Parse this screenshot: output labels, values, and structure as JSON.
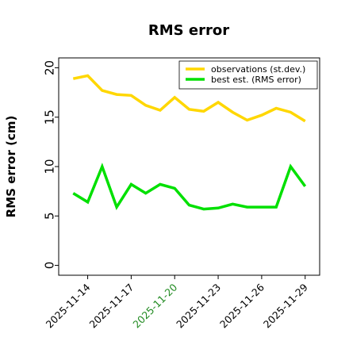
{
  "chart_data": {
    "type": "line",
    "title": "RMS error",
    "xlabel": "",
    "ylabel": "RMS error (cm)",
    "ylim": [
      -1,
      21
    ],
    "yticks": [
      0,
      5,
      10,
      15,
      20
    ],
    "xlim": [
      "2025-11-12",
      "2025-11-30"
    ],
    "x": [
      "2025-11-13",
      "2025-11-14",
      "2025-11-15",
      "2025-11-16",
      "2025-11-17",
      "2025-11-18",
      "2025-11-19",
      "2025-11-20",
      "2025-11-21",
      "2025-11-22",
      "2025-11-23",
      "2025-11-24",
      "2025-11-25",
      "2025-11-26",
      "2025-11-27",
      "2025-11-28",
      "2025-11-29"
    ],
    "xticks": [
      {
        "date": "2025-11-14",
        "label": "2025-11-14",
        "color": "#000000"
      },
      {
        "date": "2025-11-17",
        "label": "2025-11-17",
        "color": "#000000"
      },
      {
        "date": "2025-11-20",
        "label": "2025-11-20",
        "color": "#228b22"
      },
      {
        "date": "2025-11-23",
        "label": "2025-11-23",
        "color": "#000000"
      },
      {
        "date": "2025-11-26",
        "label": "2025-11-26",
        "color": "#000000"
      },
      {
        "date": "2025-11-29",
        "label": "2025-11-29",
        "color": "#000000"
      }
    ],
    "series": [
      {
        "name": "observations (st.dev.)",
        "color": "#ffd700",
        "values": [
          18.9,
          19.2,
          17.7,
          17.3,
          17.2,
          16.2,
          15.7,
          17.0,
          15.8,
          15.6,
          16.5,
          15.5,
          14.7,
          15.2,
          15.9,
          15.5,
          14.6
        ]
      },
      {
        "name": "best est. (RMS error)",
        "color": "#00e000",
        "values": [
          7.3,
          6.4,
          10.0,
          5.9,
          8.2,
          7.3,
          8.2,
          7.8,
          6.1,
          5.7,
          5.8,
          6.2,
          5.9,
          5.9,
          5.9,
          10.0,
          8.0
        ]
      }
    ],
    "legend_position": "top-right",
    "grid": false
  }
}
